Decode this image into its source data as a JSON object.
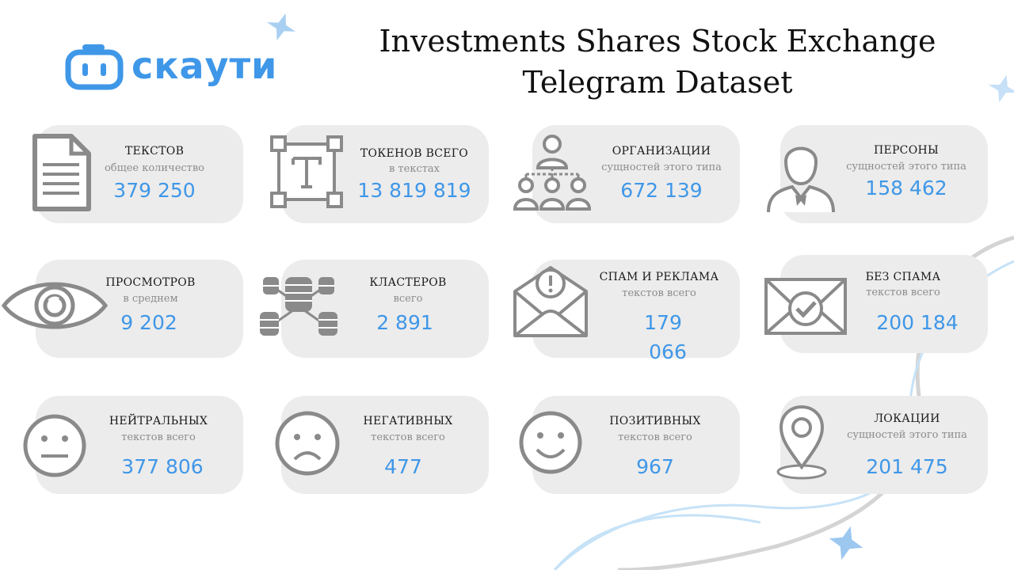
{
  "logo": {
    "text": "скаути",
    "color": "#3f97e8"
  },
  "title": {
    "line1": "Investments Shares Stock Exchange",
    "line2": "Telegram Dataset"
  },
  "stats": [
    {
      "label": "ТЕКСТОВ",
      "sub": "общее количество",
      "value": "379 250",
      "icon": "document-icon"
    },
    {
      "label": "ТОКЕНОВ ВСЕГО",
      "sub": "в текстах",
      "value": "13 819 819",
      "icon": "text-frame-icon"
    },
    {
      "label": "ОРГАНИЗАЦИИ",
      "sub": "сущностей этого типа",
      "value": "672 139",
      "icon": "organization-icon"
    },
    {
      "label": "ПЕРСОНЫ",
      "sub": "сущностей этого типа",
      "value": "158 462",
      "icon": "person-icon"
    },
    {
      "label": "ПРОСМОТРОВ",
      "sub": "в среднем",
      "value": "9 202",
      "icon": "eye-icon"
    },
    {
      "label": "КЛАСТЕРОВ",
      "sub": "всего",
      "value": "2 891",
      "icon": "database-cluster-icon"
    },
    {
      "label": "СПАМ И РЕКЛАМА",
      "sub": "текстов всего",
      "value_line1": "179",
      "value_line2": "066",
      "icon": "spam-envelope-icon"
    },
    {
      "label": "БЕЗ СПАМА",
      "sub": "текстов всего",
      "value": "200 184",
      "icon": "checked-envelope-icon"
    },
    {
      "label": "НЕЙТРАЛЬНЫХ",
      "sub": "текстов  всего",
      "value": "377 806",
      "icon": "neutral-face-icon"
    },
    {
      "label": "НЕГАТИВНЫХ",
      "sub": "текстов всего",
      "value": "477",
      "icon": "sad-face-icon"
    },
    {
      "label": "ПОЗИТИВНЫХ",
      "sub": "текстов всего",
      "value": "967",
      "icon": "smile-face-icon"
    },
    {
      "label": "ЛОКАЦИИ",
      "sub": "сущностей этого типа",
      "value": "201 475",
      "icon": "location-pin-icon"
    }
  ],
  "colors": {
    "accent": "#3f97e8",
    "card": "#ececec",
    "icon": "#8a8a8a"
  }
}
